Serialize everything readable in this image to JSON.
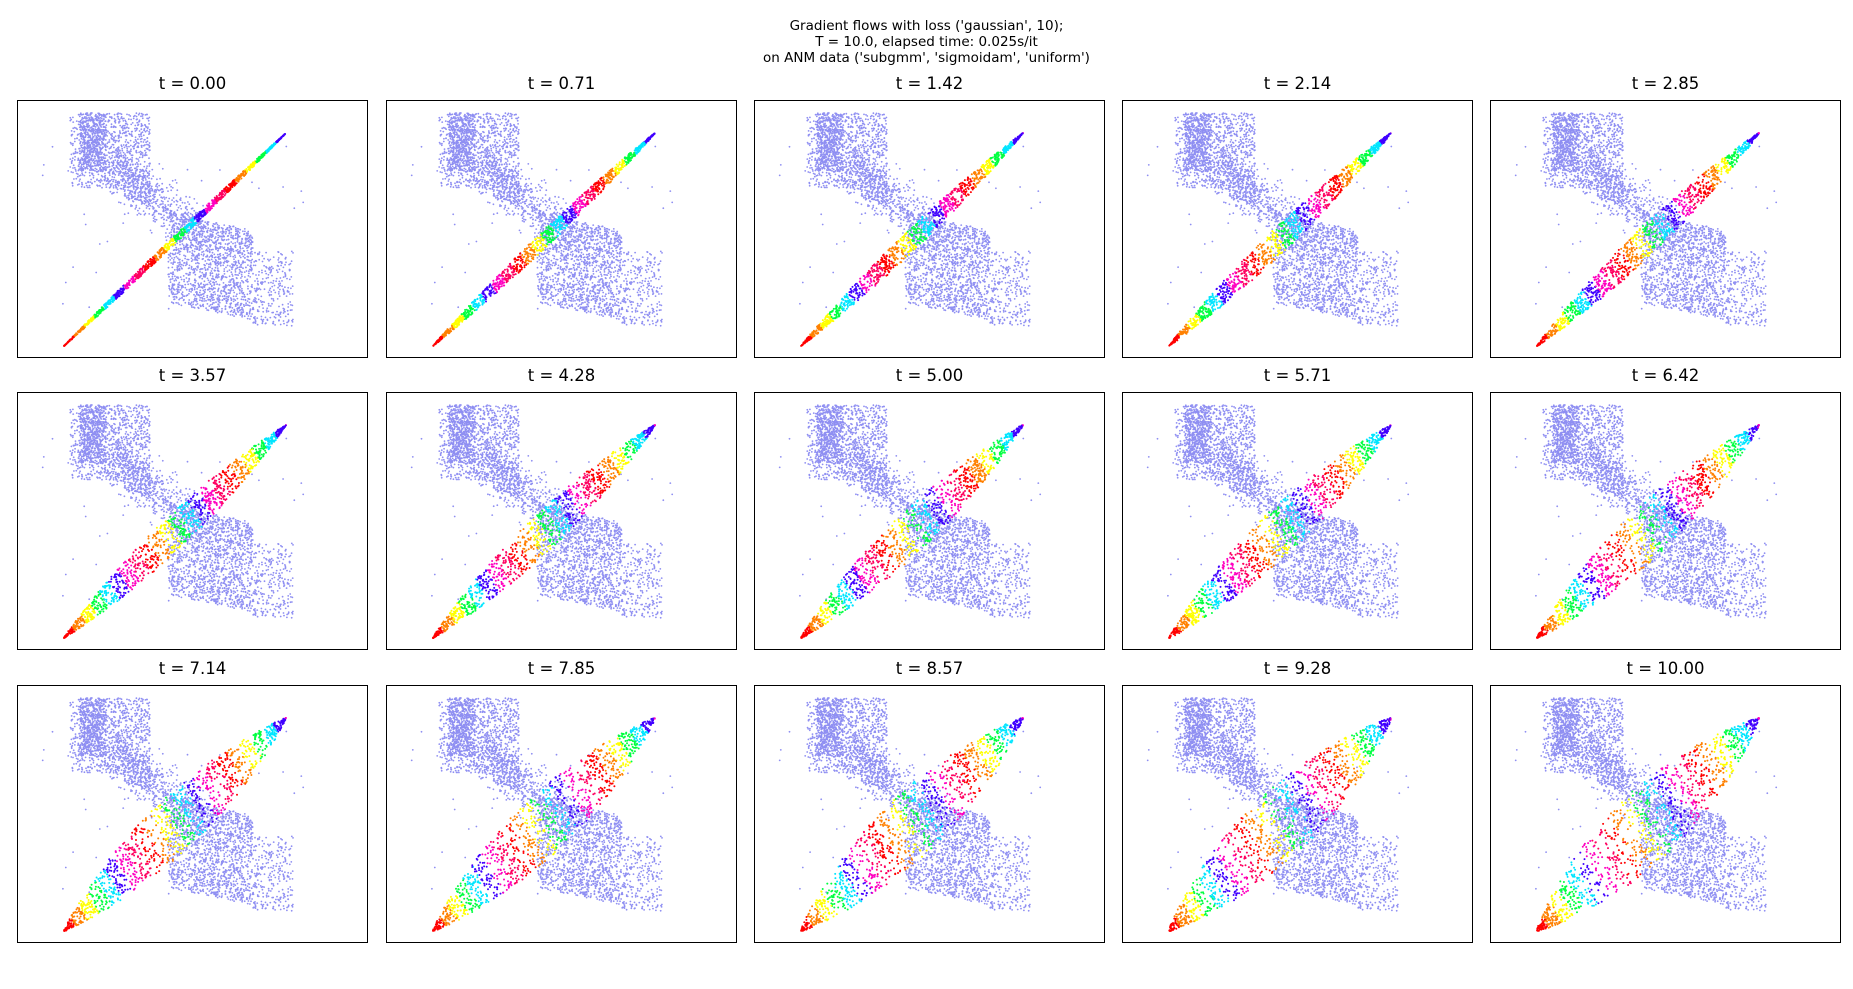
{
  "figure": {
    "suptitle_lines": [
      "Gradient flows with loss ('gaussian', 10);",
      "T = 10.0, elapsed time: 0.025s/it",
      "on ANM data ('subgmm', 'sigmoidam', 'uniform')"
    ]
  },
  "chart_data": {
    "type": "scatter",
    "title": "",
    "xlabel": "",
    "ylabel": "",
    "axis_ticks_shown": false,
    "grid": false,
    "legend": "none",
    "colors": {
      "target": "#8f8ff2",
      "flow_palette": [
        "#ff0000",
        "#ff8000",
        "#ffff00",
        "#00ff40",
        "#00e5ff",
        "#4000ff",
        "#ff00c0",
        "#ff0060"
      ]
    },
    "series": [
      {
        "role": "target"
      },
      {
        "role": "flow"
      }
    ],
    "panels": [
      {
        "label": "t = 0.00",
        "t": 0.0
      },
      {
        "label": "t = 0.71",
        "t": 0.71
      },
      {
        "label": "t = 1.42",
        "t": 1.42
      },
      {
        "label": "t = 2.14",
        "t": 2.14
      },
      {
        "label": "t = 2.85",
        "t": 2.85
      },
      {
        "label": "t = 3.57",
        "t": 3.57
      },
      {
        "label": "t = 4.28",
        "t": 4.28
      },
      {
        "label": "t = 5.00",
        "t": 5.0
      },
      {
        "label": "t = 5.71",
        "t": 5.71
      },
      {
        "label": "t = 6.42",
        "t": 6.42
      },
      {
        "label": "t = 7.14",
        "t": 7.14
      },
      {
        "label": "t = 7.85",
        "t": 7.85
      },
      {
        "label": "t = 8.57",
        "t": 8.57
      },
      {
        "label": "t = 9.28",
        "t": 9.28
      },
      {
        "label": "t = 10.00",
        "t": 10.0
      }
    ]
  }
}
